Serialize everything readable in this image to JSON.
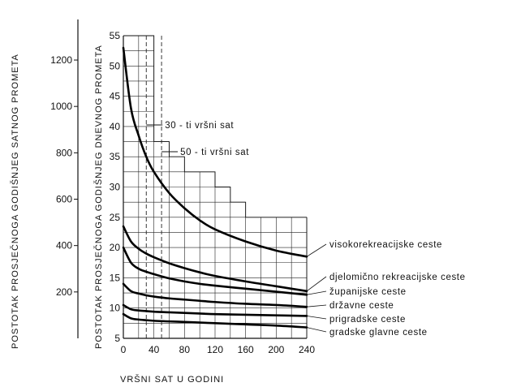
{
  "chart_data": {
    "type": "line",
    "xlabel": "VRŠNI SAT U GODINI",
    "ylabel": "POSTOTAK PROSJEČNOGA GODIŠNJEG DNEVNOG PROMETA",
    "y2label": "POSTOTAK PROSJEČNOGA GODIŠNJEG SATNOG PROMETA",
    "xlim": [
      0,
      240
    ],
    "ylim": [
      5,
      55
    ],
    "y2lim": [
      0,
      1375
    ],
    "x_ticks": [
      0,
      40,
      80,
      120,
      160,
      200,
      240
    ],
    "y_ticks": [
      5,
      10,
      15,
      20,
      25,
      30,
      35,
      40,
      45,
      50,
      55
    ],
    "y2_ticks": [
      200,
      400,
      600,
      800,
      1000,
      1200
    ],
    "grid": true,
    "grid_x_step": 20,
    "grid_y_step": 2.5,
    "grid_envelope": [
      {
        "x": 0,
        "y": 55
      },
      {
        "x": 40,
        "y": 55
      },
      {
        "x": 40,
        "y": 37.5
      },
      {
        "x": 60,
        "y": 37.5
      },
      {
        "x": 60,
        "y": 35
      },
      {
        "x": 80,
        "y": 35
      },
      {
        "x": 80,
        "y": 32.5
      },
      {
        "x": 120,
        "y": 32.5
      },
      {
        "x": 120,
        "y": 30
      },
      {
        "x": 140,
        "y": 30
      },
      {
        "x": 140,
        "y": 27.5
      },
      {
        "x": 160,
        "y": 27.5
      },
      {
        "x": 160,
        "y": 25
      },
      {
        "x": 240,
        "y": 25
      }
    ],
    "reference_lines": [
      {
        "x": 30,
        "label": "30 - ti  vršni  sat"
      },
      {
        "x": 50,
        "label": "50 - ti  vršni  sat"
      }
    ],
    "series": [
      {
        "name": "visokorekreacijske ceste",
        "x": [
          0,
          10,
          20,
          30,
          40,
          60,
          80,
          100,
          120,
          160,
          200,
          240
        ],
        "y": [
          53,
          43,
          38.5,
          35,
          32.5,
          29,
          26.5,
          24.5,
          23,
          21,
          19.5,
          18.5
        ]
      },
      {
        "name": "djelomično rekreacijske ceste",
        "x": [
          0,
          10,
          20,
          30,
          40,
          60,
          80,
          100,
          120,
          160,
          200,
          240
        ],
        "y": [
          23.5,
          21,
          19.8,
          19,
          18.4,
          17.4,
          16.6,
          15.9,
          15.3,
          14.4,
          13.6,
          12.8
        ]
      },
      {
        "name": "županijske ceste",
        "x": [
          0,
          10,
          20,
          30,
          40,
          60,
          80,
          100,
          120,
          160,
          200,
          240
        ],
        "y": [
          20,
          17.5,
          16.5,
          16,
          15.6,
          14.9,
          14.4,
          14,
          13.7,
          13.2,
          12.7,
          12.2
        ]
      },
      {
        "name": "državne ceste",
        "x": [
          0,
          10,
          20,
          30,
          40,
          60,
          80,
          100,
          120,
          160,
          200,
          240
        ],
        "y": [
          14,
          12.8,
          12.4,
          12.1,
          11.9,
          11.6,
          11.4,
          11.2,
          11,
          10.7,
          10.5,
          10.2
        ]
      },
      {
        "name": "prigradske ceste",
        "x": [
          0,
          10,
          20,
          30,
          40,
          60,
          80,
          100,
          120,
          160,
          200,
          240
        ],
        "y": [
          10.5,
          9.8,
          9.6,
          9.5,
          9.4,
          9.3,
          9.2,
          9.1,
          9,
          8.9,
          8.8,
          8.7
        ]
      },
      {
        "name": "gradske glavne ceste",
        "x": [
          0,
          10,
          20,
          30,
          40,
          60,
          80,
          100,
          120,
          160,
          200,
          240
        ],
        "y": [
          9,
          8.3,
          8.1,
          8,
          7.9,
          7.8,
          7.7,
          7.6,
          7.5,
          7.3,
          7.1,
          6.8
        ]
      }
    ]
  }
}
